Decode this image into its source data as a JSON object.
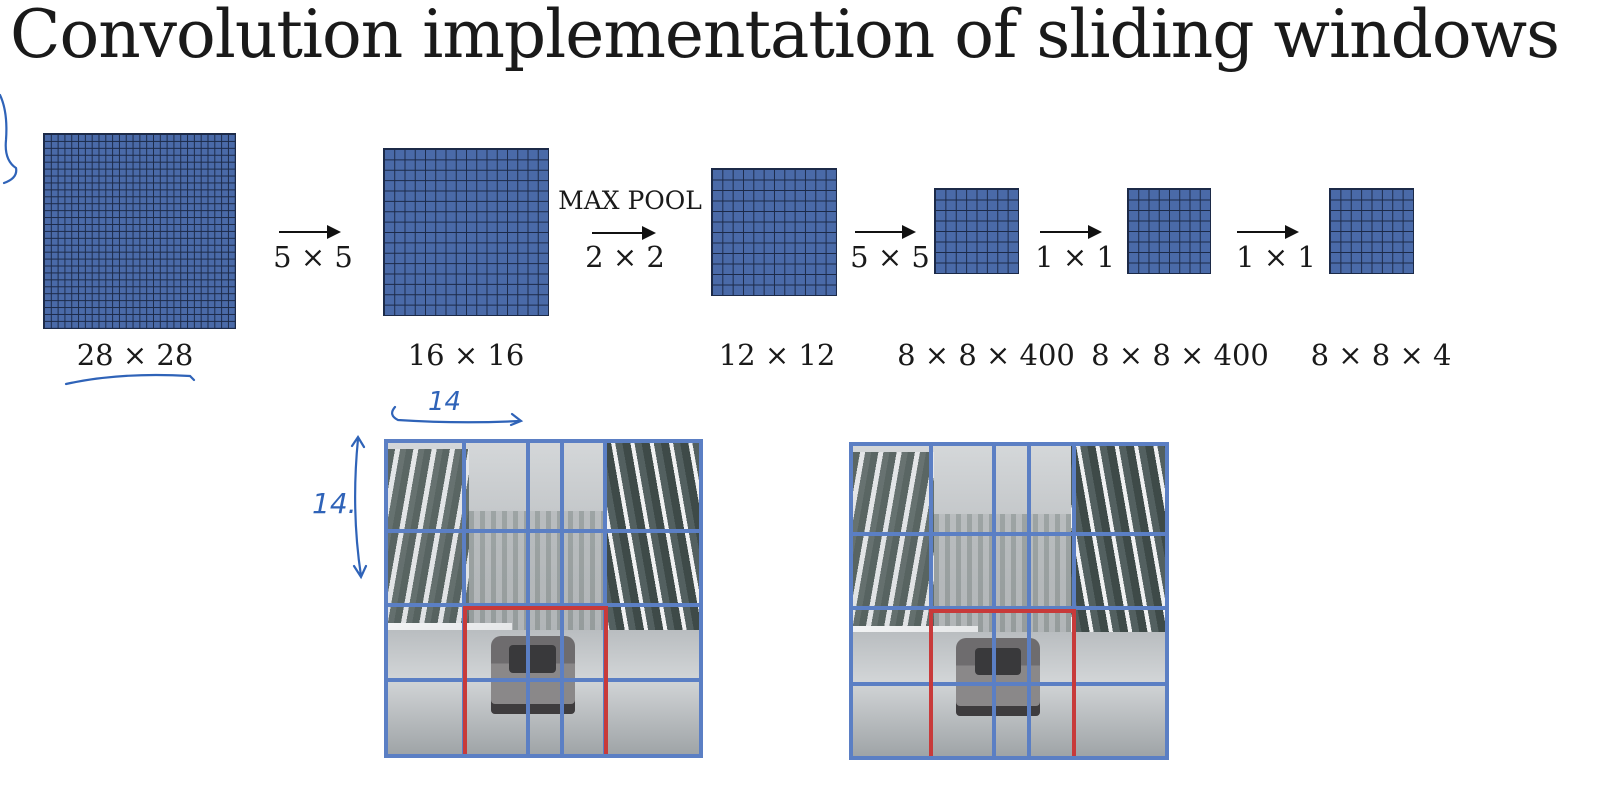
{
  "title": "Convolution implementation of sliding windows",
  "colors": {
    "grid_fill": "#4a6aa8",
    "grid_line": "#1c2a48",
    "photo_grid": "#5b7fc4",
    "highlight": "#c83a3a",
    "handwriting": "#2f63b8"
  },
  "network": {
    "layers": [
      {
        "label": "28 × 28",
        "cells": 28
      },
      {
        "label": "16 × 16",
        "cells": 16
      },
      {
        "label": "12 × 12",
        "cells": 12
      },
      {
        "label": "8 × 8 × 400",
        "cells": 8
      },
      {
        "label": "8 × 8 × 400",
        "cells": 8
      },
      {
        "label": "8 × 8 × 4",
        "cells": 8
      }
    ],
    "ops": [
      {
        "label": "5 × 5"
      },
      {
        "label": "2 × 2",
        "title": "MAX POOL"
      },
      {
        "label": "5 × 5"
      },
      {
        "label": "1 × 1"
      },
      {
        "label": "1 × 1"
      }
    ]
  },
  "annotations": {
    "width_note": "14",
    "height_note": "14."
  },
  "photos": [
    {
      "name": "car-image-left",
      "icon": "snowy-road-car-image"
    },
    {
      "name": "car-image-right",
      "icon": "snowy-road-car-image"
    }
  ]
}
